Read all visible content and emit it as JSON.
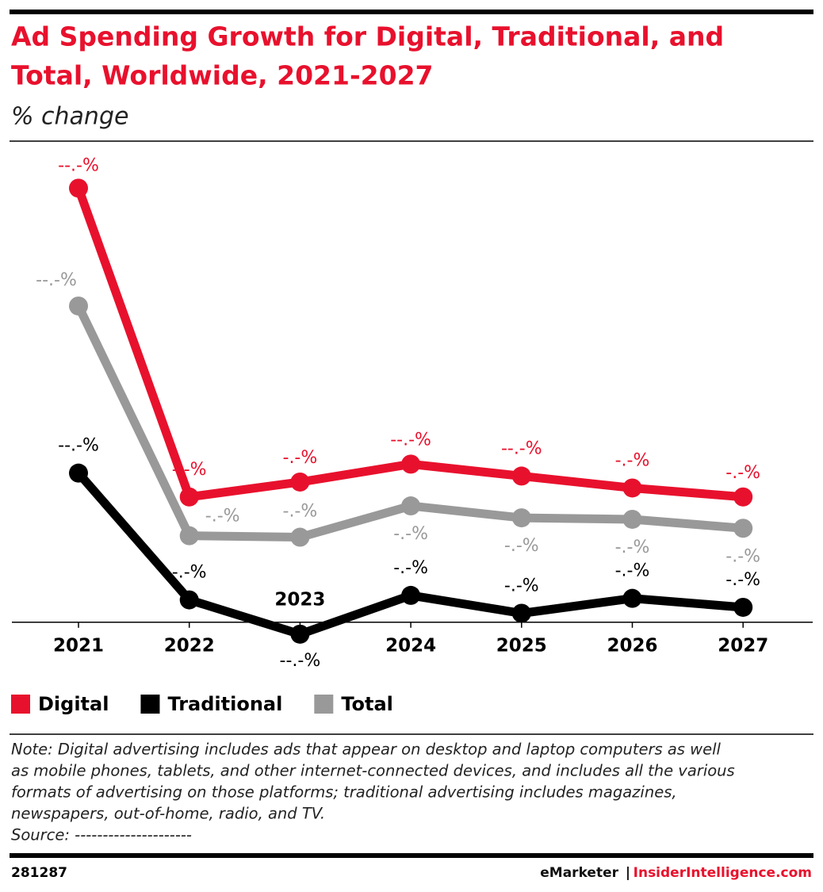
{
  "chart_data": {
    "type": "line",
    "title": "Ad Spending Growth for Digital, Traditional, and Total, Worldwide, 2021-2027",
    "subtitle": "% change",
    "categories": [
      "2021",
      "2022",
      "2023",
      "2024",
      "2025",
      "2026",
      "2027"
    ],
    "series": [
      {
        "name": "Digital",
        "color": "#e8112d",
        "values": [
          29.1,
          8.4,
          9.4,
          10.6,
          9.8,
          9.0,
          8.4
        ],
        "value_labels": [
          "--.-%",
          "-.-%",
          "-.-%",
          "--.-%",
          "--.-%",
          "-.-%",
          "-.-%"
        ]
      },
      {
        "name": "Traditional",
        "color": "#000000",
        "values": [
          10.0,
          1.5,
          -0.8,
          1.8,
          0.6,
          1.6,
          1.0
        ],
        "value_labels": [
          "--.-%",
          "-.-%",
          "--.-%",
          "-.-%",
          "-.-%",
          "-.-%",
          "-.-%"
        ]
      },
      {
        "name": "Total",
        "color": "#999999",
        "values": [
          21.2,
          5.8,
          5.7,
          7.8,
          7.0,
          6.9,
          6.3
        ],
        "value_labels": [
          "--.-%",
          "-.-%",
          "-.-%",
          "-.-%",
          "-.-%",
          "-.-%",
          "-.-%"
        ]
      }
    ],
    "ylim": [
      -1.5,
      30.5
    ],
    "note": [
      "Note: Digital advertising includes ads that appear on desktop and laptop computers as well",
      "as mobile phones, tablets, and other internet-connected devices, and includes all the various",
      "formats of advertising on those platforms; traditional advertising includes magazines,",
      "newspapers, out-of-home, radio, and TV."
    ],
    "source": "Source: ---------------------",
    "chart_id": "281287",
    "brand": "eMarketer",
    "separator": "|",
    "site": "InsiderIntelligence.com"
  }
}
